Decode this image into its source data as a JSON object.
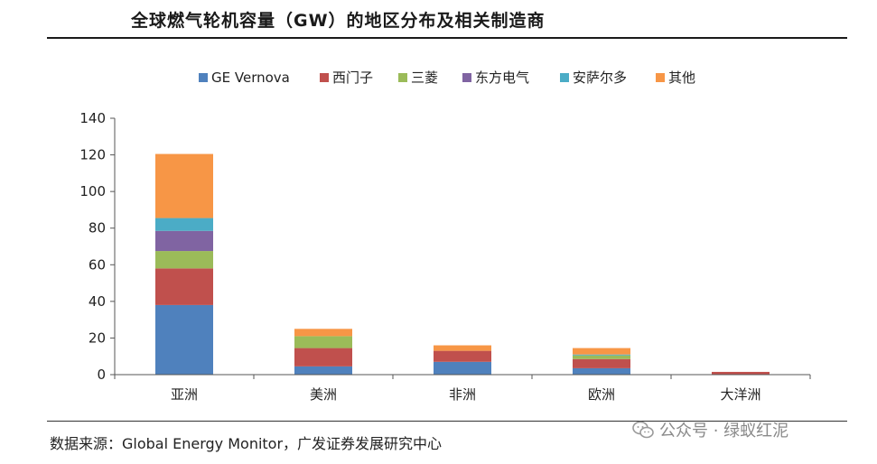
{
  "header": {
    "title": "全球燃气轮机容量（GW）的地区分布及相关制造商"
  },
  "footer": {
    "source": "数据来源：Global Energy Monitor，广发证券发展研究中心",
    "watermark": "公众号 · 绿蚁红泥",
    "watermark_icon": "wechat-icon"
  },
  "chart_data": {
    "type": "bar",
    "stacked": true,
    "title": "全球燃气轮机容量（GW）的地区分布及相关制造商",
    "categories": [
      "亚洲",
      "美洲",
      "非洲",
      "欧洲",
      "大洋洲"
    ],
    "ylim": [
      0,
      140
    ],
    "yticks": [
      0,
      20,
      40,
      60,
      80,
      100,
      120,
      140
    ],
    "legend_position": "top",
    "grid": false,
    "series": [
      {
        "name": "GE Vernova",
        "color": "#4f81bd",
        "values": [
          38,
          4.5,
          7,
          3.5,
          0
        ]
      },
      {
        "name": "西门子",
        "color": "#c0504d",
        "values": [
          20,
          10,
          6,
          5,
          1.5
        ]
      },
      {
        "name": "三菱",
        "color": "#9bbb59",
        "values": [
          9.5,
          6.5,
          0,
          2,
          0
        ]
      },
      {
        "name": "东方电气",
        "color": "#8064a2",
        "values": [
          11,
          0,
          0,
          0,
          0
        ]
      },
      {
        "name": "安萨尔多",
        "color": "#4bacc6",
        "values": [
          7,
          0,
          0,
          0.5,
          0
        ]
      },
      {
        "name": "其他",
        "color": "#f79646",
        "values": [
          35,
          4,
          3,
          3.5,
          0
        ]
      }
    ]
  }
}
